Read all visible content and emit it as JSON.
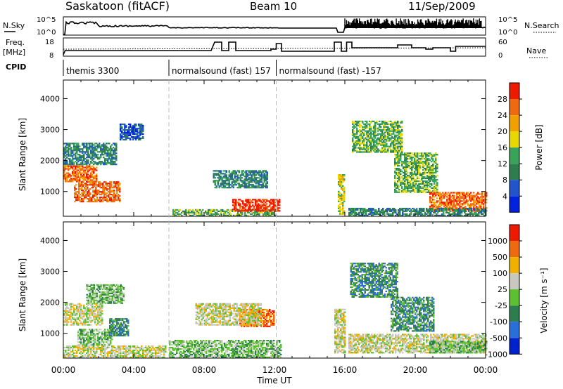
{
  "header": {
    "station": "Saskatoon (fitACF)",
    "beam": "Beam 10",
    "date": "11/Sep/2009"
  },
  "scan_panels": {
    "nsky_label": "N.Sky",
    "nsearch_label": "N.Search",
    "nsky_ticks": [
      "10^5",
      "10^0"
    ],
    "nsearch_ticks": [
      "10^5",
      "10^0"
    ],
    "freq_label_line1": "Freq.",
    "freq_label_line2": "[MHz]",
    "freq_ticks": [
      "18",
      "8"
    ],
    "nave_label": "Nave",
    "nave_ticks": [
      "60",
      "0"
    ],
    "cpid_label": "CPID",
    "cpid_segments": [
      {
        "label": "themis 3300",
        "start_hour": 0
      },
      {
        "label": "normalsound (fast) 157",
        "start_hour": 6
      },
      {
        "label": "normalsound (fast) -157",
        "start_hour": 12.1
      }
    ]
  },
  "chart_data": [
    {
      "type": "heatmap",
      "ylabel": "Slant Range [km]",
      "xlabel": "",
      "xlim": [
        0,
        24
      ],
      "ylim": [
        200,
        4600
      ],
      "y_ticks": [
        1000,
        2000,
        3000,
        4000
      ],
      "colorbar": {
        "label": "Power [dB]",
        "ticks": [
          "28",
          "24",
          "20",
          "16",
          "12",
          "8",
          "4"
        ],
        "colors": [
          "#0022dd",
          "#2255cc",
          "#2e7d4f",
          "#3aa35a",
          "#e6d800",
          "#f0a000",
          "#ee6a10",
          "#ee1a00"
        ]
      },
      "regions": [
        {
          "t0": 0.0,
          "t1": 1.9,
          "r0": 1350,
          "r1": 1850,
          "level": 6
        },
        {
          "t0": 0.0,
          "t1": 3.0,
          "r0": 1900,
          "r1": 2600,
          "level": 2
        },
        {
          "t0": 0.6,
          "t1": 3.2,
          "r0": 700,
          "r1": 1350,
          "level": 6
        },
        {
          "t0": 3.2,
          "t1": 4.5,
          "r0": 2700,
          "r1": 3200,
          "level": 1
        },
        {
          "t0": 6.2,
          "t1": 12.1,
          "r0": 250,
          "r1": 450,
          "level": 3
        },
        {
          "t0": 9.6,
          "t1": 12.3,
          "r0": 400,
          "r1": 800,
          "level": 7
        },
        {
          "t0": 8.5,
          "t1": 11.6,
          "r0": 1150,
          "r1": 1700,
          "level": 2
        },
        {
          "t0": 15.6,
          "t1": 16.0,
          "r0": 300,
          "r1": 1600,
          "level": 4
        },
        {
          "t0": 16.4,
          "t1": 19.2,
          "r0": 2300,
          "r1": 3300,
          "level": 3
        },
        {
          "t0": 18.8,
          "t1": 21.2,
          "r0": 1000,
          "r1": 2300,
          "level": 3
        },
        {
          "t0": 20.8,
          "t1": 24.0,
          "r0": 400,
          "r1": 1000,
          "level": 6
        },
        {
          "t0": 16.2,
          "t1": 24.0,
          "r0": 250,
          "r1": 500,
          "level": 2
        }
      ]
    },
    {
      "type": "heatmap",
      "ylabel": "Slant Range [km]",
      "xlabel": "Time UT",
      "xlim": [
        0,
        24
      ],
      "ylim": [
        200,
        4600
      ],
      "y_ticks": [
        1000,
        2000,
        3000,
        4000
      ],
      "x_tick_labels": [
        "00:00",
        "04:00",
        "08:00",
        "12:00",
        "16:00",
        "20:00",
        "00:00"
      ],
      "colorbar": {
        "label": "Velocity [m s⁻¹]",
        "ticks": [
          "1000",
          "500",
          "100",
          "25",
          "-25",
          "-100",
          "-500",
          "-1000"
        ],
        "colors": [
          "#0022cc",
          "#2a6fd8",
          "#2e7d4f",
          "#5cc030",
          "#c8c8c0",
          "#f0b000",
          "#ee6a10",
          "#ee1a00"
        ]
      },
      "regions": [
        {
          "t0": 0.0,
          "t1": 2.2,
          "r0": 1300,
          "r1": 2000,
          "level": 4
        },
        {
          "t0": 0.8,
          "t1": 2.8,
          "r0": 650,
          "r1": 1150,
          "level": 3
        },
        {
          "t0": 2.6,
          "t1": 3.7,
          "r0": 950,
          "r1": 1500,
          "level": 2
        },
        {
          "t0": 1.3,
          "t1": 3.4,
          "r0": 2000,
          "r1": 2600,
          "level": 3
        },
        {
          "t0": 10.0,
          "t1": 12.0,
          "r0": 1250,
          "r1": 1800,
          "level": 6
        },
        {
          "t0": 7.5,
          "t1": 11.2,
          "r0": 1300,
          "r1": 2000,
          "level": 4
        },
        {
          "t0": 6.0,
          "t1": 12.4,
          "r0": 250,
          "r1": 800,
          "level": 3
        },
        {
          "t0": 0.0,
          "t1": 5.8,
          "r0": 250,
          "r1": 650,
          "level": 4
        },
        {
          "t0": 15.4,
          "t1": 16.0,
          "r0": 400,
          "r1": 1800,
          "level": 4
        },
        {
          "t0": 16.3,
          "t1": 19.0,
          "r0": 2200,
          "r1": 3300,
          "level": 2
        },
        {
          "t0": 18.6,
          "t1": 21.0,
          "r0": 1100,
          "r1": 2200,
          "level": 2
        },
        {
          "t0": 16.2,
          "t1": 24.0,
          "r0": 400,
          "r1": 1000,
          "level": 4
        },
        {
          "t0": 20.8,
          "t1": 24.0,
          "r0": 400,
          "r1": 800,
          "level": 3
        }
      ]
    }
  ]
}
